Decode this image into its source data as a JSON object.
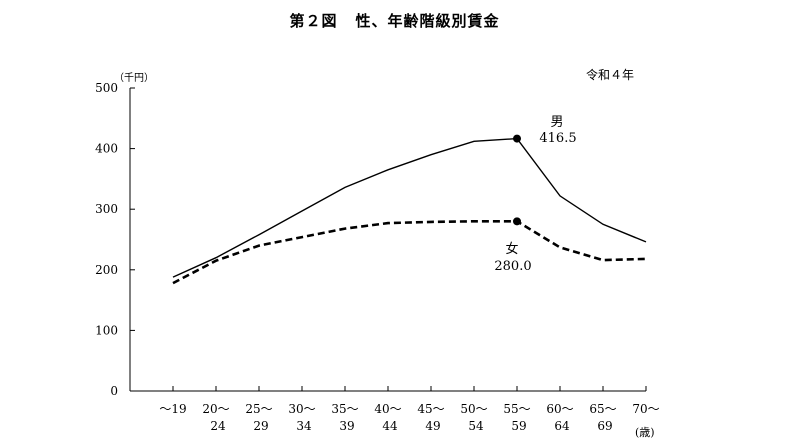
{
  "title": {
    "figure_no": "第２図",
    "text": "性、年齢階級別賃金"
  },
  "unit_label": "（千円）",
  "year_note": "令和４年",
  "age_unit": "(歳)",
  "colors": {
    "line": "#000000",
    "background": "#ffffff"
  },
  "chart_data": {
    "type": "line",
    "title": "性、年齢階級別賃金",
    "ylabel": "（千円）",
    "xlabel": "(歳)",
    "ylim": [
      0,
      500
    ],
    "yticks": [
      0,
      100,
      200,
      300,
      400,
      500
    ],
    "categories": [
      [
        "～19",
        ""
      ],
      [
        "20～",
        "24"
      ],
      [
        "25～",
        "29"
      ],
      [
        "30～",
        "34"
      ],
      [
        "35～",
        "39"
      ],
      [
        "40～",
        "44"
      ],
      [
        "45～",
        "49"
      ],
      [
        "50～",
        "54"
      ],
      [
        "55～",
        "59"
      ],
      [
        "60～",
        "64"
      ],
      [
        "65～",
        "69"
      ],
      [
        "70～",
        ""
      ]
    ],
    "series": [
      {
        "name": "男",
        "style": "solid",
        "values": [
          188,
          220,
          258,
          297,
          336,
          365,
          390,
          412,
          416.5,
          322,
          275,
          246
        ],
        "marker_index": 8,
        "marker_label": "416.5"
      },
      {
        "name": "女",
        "style": "dashed",
        "values": [
          178,
          215,
          240,
          254,
          268,
          277,
          279,
          280,
          280.0,
          237,
          216,
          218
        ],
        "marker_index": 8,
        "marker_label": "280.0"
      }
    ],
    "grid": false
  }
}
